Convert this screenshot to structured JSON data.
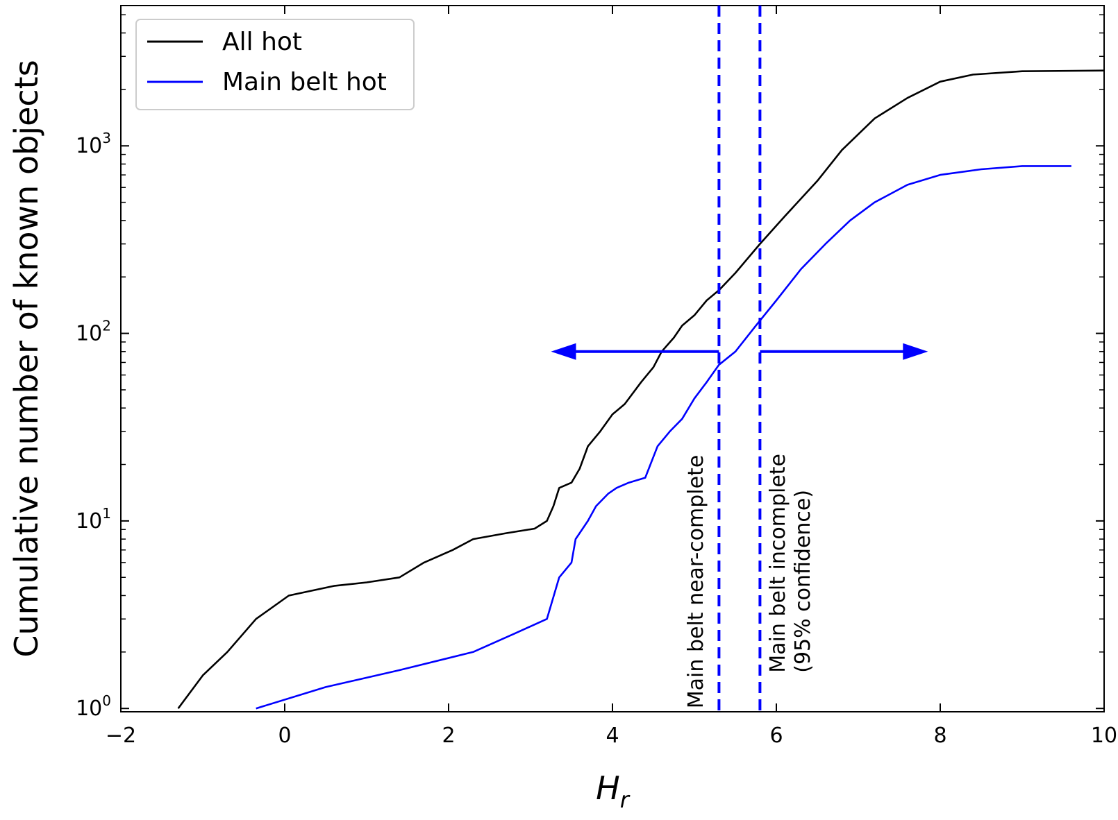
{
  "chart_data": {
    "type": "line",
    "title": "",
    "xlabel": "H",
    "xlabel_sub": "r",
    "ylabel": "Cumulative number of known objects",
    "xlim": [
      -2,
      10
    ],
    "ylim": [
      0.96,
      5600
    ],
    "yscale": "log",
    "x_ticks": [
      -2,
      0,
      2,
      4,
      6,
      8,
      10
    ],
    "x_tick_labels": [
      "−2",
      "0",
      "2",
      "4",
      "6",
      "8",
      "10"
    ],
    "y_ticks": [
      1,
      10,
      100,
      1000
    ],
    "y_tick_bases": [
      "10",
      "10",
      "10",
      "10"
    ],
    "y_tick_exps": [
      "0",
      "1",
      "2",
      "3"
    ],
    "grid": false,
    "legend_position": "upper-left",
    "series": [
      {
        "name": "All hot",
        "color": "#000000",
        "x": [
          -1.3,
          -1.0,
          -0.7,
          -0.35,
          0.05,
          0.6,
          1.0,
          1.4,
          1.7,
          2.05,
          2.3,
          2.7,
          3.05,
          3.2,
          3.28,
          3.35,
          3.5,
          3.6,
          3.7,
          3.85,
          4.0,
          4.15,
          4.35,
          4.5,
          4.6,
          4.75,
          4.85,
          5.0,
          5.15,
          5.3,
          5.5,
          5.8,
          6.1,
          6.5,
          6.8,
          7.2,
          7.6,
          8.0,
          8.4,
          9.0,
          10.0
        ],
        "y": [
          1,
          1.5,
          2.0,
          3.0,
          4.0,
          4.5,
          4.7,
          5.0,
          6.0,
          7.0,
          8.0,
          8.6,
          9.1,
          10,
          12,
          15,
          16,
          19,
          25,
          30,
          37,
          42,
          55,
          66,
          80,
          95,
          110,
          125,
          150,
          170,
          210,
          300,
          420,
          650,
          950,
          1400,
          1800,
          2200,
          2400,
          2500,
          2520
        ]
      },
      {
        "name": "Main belt hot",
        "color": "#0000ff",
        "x": [
          -0.35,
          0.5,
          1.4,
          2.3,
          2.8,
          3.2,
          3.35,
          3.5,
          3.55,
          3.7,
          3.8,
          3.95,
          4.05,
          4.2,
          4.4,
          4.55,
          4.7,
          4.85,
          5.0,
          5.15,
          5.3,
          5.5,
          5.75,
          6.0,
          6.3,
          6.6,
          6.9,
          7.2,
          7.6,
          8.0,
          8.5,
          9.0,
          9.6
        ],
        "y": [
          1,
          1.3,
          1.6,
          2.0,
          2.5,
          3.0,
          5.0,
          6.0,
          8.0,
          10,
          12,
          14,
          15,
          16,
          17,
          25,
          30,
          35,
          45,
          55,
          68,
          80,
          110,
          150,
          220,
          300,
          400,
          500,
          620,
          700,
          750,
          780,
          780
        ]
      }
    ],
    "vlines": [
      {
        "x": 5.3,
        "color": "#0000ff",
        "style": "dashed"
      },
      {
        "x": 5.8,
        "color": "#0000ff",
        "style": "dashed"
      }
    ],
    "arrows": [
      {
        "from_x": 5.3,
        "to_x": 3.25,
        "y": 80,
        "color": "#0000ff"
      },
      {
        "from_x": 5.8,
        "to_x": 7.85,
        "y": 80,
        "color": "#0000ff"
      }
    ],
    "annotations": [
      {
        "lines": [
          "Main belt near-complete"
        ],
        "x": 5.1,
        "y_top": 1.0
      },
      {
        "lines": [
          "Main belt incomplete",
          "(95% confidence)"
        ],
        "x": 6.1,
        "y_top": 1.55
      }
    ]
  }
}
